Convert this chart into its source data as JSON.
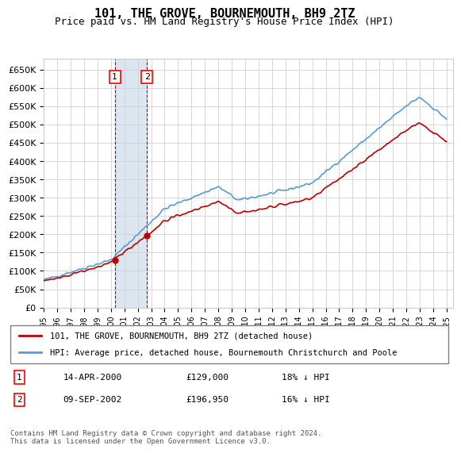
{
  "title": "101, THE GROVE, BOURNEMOUTH, BH9 2TZ",
  "subtitle": "Price paid vs. HM Land Registry's House Price Index (HPI)",
  "ylabel_ticks": [
    "£0",
    "£50K",
    "£100K",
    "£150K",
    "£200K",
    "£250K",
    "£300K",
    "£350K",
    "£400K",
    "£450K",
    "£500K",
    "£550K",
    "£600K",
    "£650K"
  ],
  "ytick_values": [
    0,
    50000,
    100000,
    150000,
    200000,
    250000,
    300000,
    350000,
    400000,
    450000,
    500000,
    550000,
    600000,
    650000
  ],
  "ylim": [
    0,
    680000
  ],
  "sale1_date": 2000.29,
  "sale1_price": 129000,
  "sale2_date": 2002.69,
  "sale2_price": 196950,
  "hpi_color": "#5b9bd5",
  "price_color": "#c00000",
  "marker_color": "#c00000",
  "shade_color": "#dce6f1",
  "legend_label_red": "101, THE GROVE, BOURNEMOUTH, BH9 2TZ (detached house)",
  "legend_label_blue": "HPI: Average price, detached house, Bournemouth Christchurch and Poole",
  "footnote": "Contains HM Land Registry data © Crown copyright and database right 2024.\nThis data is licensed under the Open Government Licence v3.0.",
  "table_row1": [
    "1",
    "14-APR-2000",
    "£129,000",
    "18% ↓ HPI"
  ],
  "table_row2": [
    "2",
    "09-SEP-2002",
    "£196,950",
    "16% ↓ HPI"
  ],
  "bg_color": "#ffffff",
  "grid_color": "#d0d0d0"
}
